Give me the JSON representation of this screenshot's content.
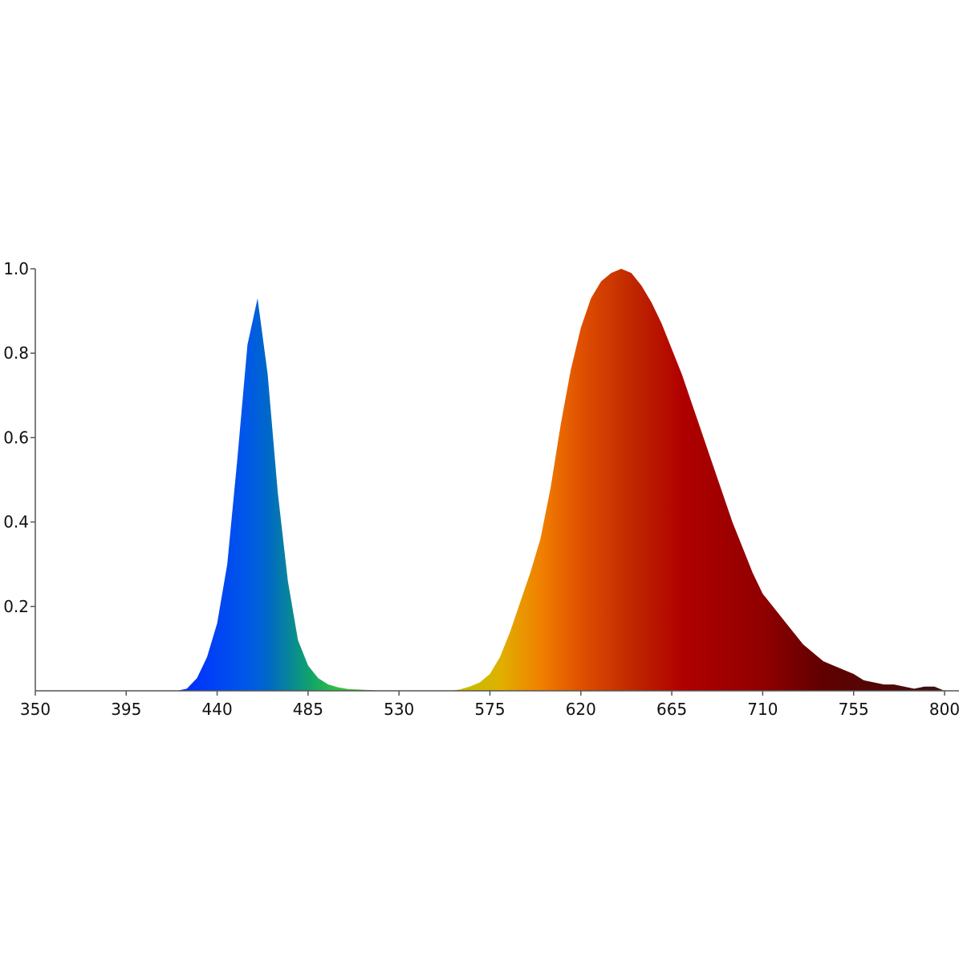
{
  "chart_data": {
    "type": "area",
    "x": [
      350,
      355,
      360,
      365,
      370,
      375,
      380,
      385,
      390,
      395,
      400,
      405,
      410,
      415,
      420,
      425,
      430,
      435,
      440,
      445,
      450,
      455,
      460,
      465,
      470,
      475,
      480,
      485,
      490,
      495,
      500,
      505,
      510,
      515,
      520,
      525,
      530,
      535,
      540,
      545,
      550,
      555,
      560,
      565,
      570,
      575,
      580,
      585,
      590,
      595,
      600,
      605,
      610,
      615,
      620,
      625,
      630,
      635,
      640,
      645,
      650,
      655,
      660,
      665,
      670,
      675,
      680,
      685,
      690,
      695,
      700,
      705,
      710,
      715,
      720,
      725,
      730,
      735,
      740,
      745,
      750,
      755,
      760,
      765,
      770,
      775,
      780,
      785,
      790,
      795,
      800
    ],
    "values": [
      0,
      0,
      0,
      0,
      0,
      0,
      0,
      0,
      0,
      0,
      0,
      0,
      0,
      0,
      0,
      0.005,
      0.03,
      0.08,
      0.16,
      0.3,
      0.55,
      0.82,
      0.93,
      0.75,
      0.47,
      0.26,
      0.12,
      0.06,
      0.03,
      0.015,
      0.008,
      0.004,
      0.003,
      0.002,
      0.001,
      0,
      0,
      0,
      0,
      0,
      0,
      0,
      0.003,
      0.01,
      0.02,
      0.04,
      0.08,
      0.14,
      0.21,
      0.28,
      0.36,
      0.48,
      0.63,
      0.76,
      0.86,
      0.93,
      0.97,
      0.99,
      1.0,
      0.99,
      0.96,
      0.92,
      0.87,
      0.81,
      0.75,
      0.68,
      0.61,
      0.54,
      0.47,
      0.4,
      0.34,
      0.28,
      0.23,
      0.2,
      0.17,
      0.14,
      0.11,
      0.09,
      0.07,
      0.06,
      0.05,
      0.04,
      0.025,
      0.02,
      0.015,
      0.015,
      0.01,
      0.005,
      0.01,
      0.01,
      0
    ],
    "xlim": [
      350,
      800
    ],
    "ylim": [
      0,
      1
    ],
    "xticks": [
      350,
      395,
      440,
      485,
      530,
      575,
      620,
      665,
      710,
      755,
      800
    ],
    "yticks": [
      0.2,
      0.4,
      0.6,
      0.8,
      {
        "value": 1,
        "label": "1.0"
      }
    ]
  }
}
